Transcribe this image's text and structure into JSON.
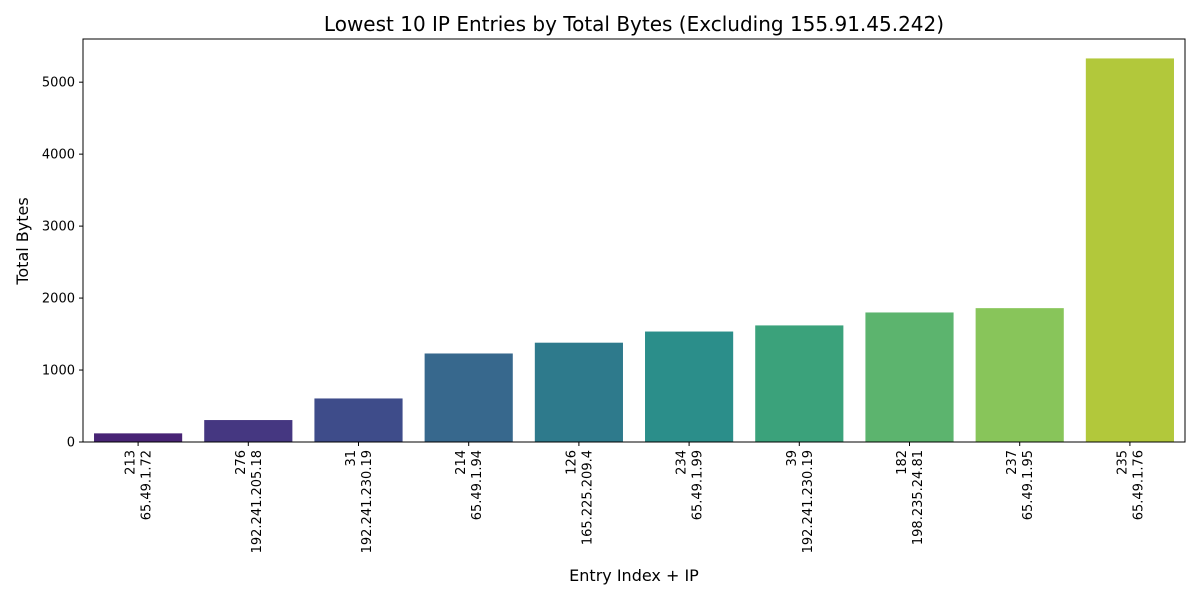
{
  "chart_data": {
    "type": "bar",
    "title": "Lowest 10 IP Entries by Total Bytes (Excluding 155.91.45.242)",
    "xlabel": "Entry Index + IP",
    "ylabel": "Total Bytes",
    "ylim": [
      0,
      5600
    ],
    "yticks": [
      0,
      1000,
      2000,
      3000,
      4000,
      5000
    ],
    "grid": false,
    "categories": [
      [
        "213",
        "65.49.1.72"
      ],
      [
        "276",
        "192.241.205.18"
      ],
      [
        "31",
        "192.241.230.19"
      ],
      [
        "214",
        "65.49.1.94"
      ],
      [
        "126",
        "165.225.209.4"
      ],
      [
        "234",
        "65.49.1.99"
      ],
      [
        "39",
        "192.241.230.19"
      ],
      [
        "182",
        "198.235.24.81"
      ],
      [
        "237",
        "65.49.1.95"
      ],
      [
        "235",
        "65.49.1.76"
      ]
    ],
    "values": [
      120,
      305,
      605,
      1230,
      1380,
      1535,
      1620,
      1800,
      1860,
      5330
    ],
    "colors": [
      "#482475",
      "#453781",
      "#3e4c8a",
      "#37688d",
      "#2e7a8c",
      "#2b8e8a",
      "#3ba27b",
      "#5cb46e",
      "#88c55a",
      "#b2c83b"
    ]
  }
}
